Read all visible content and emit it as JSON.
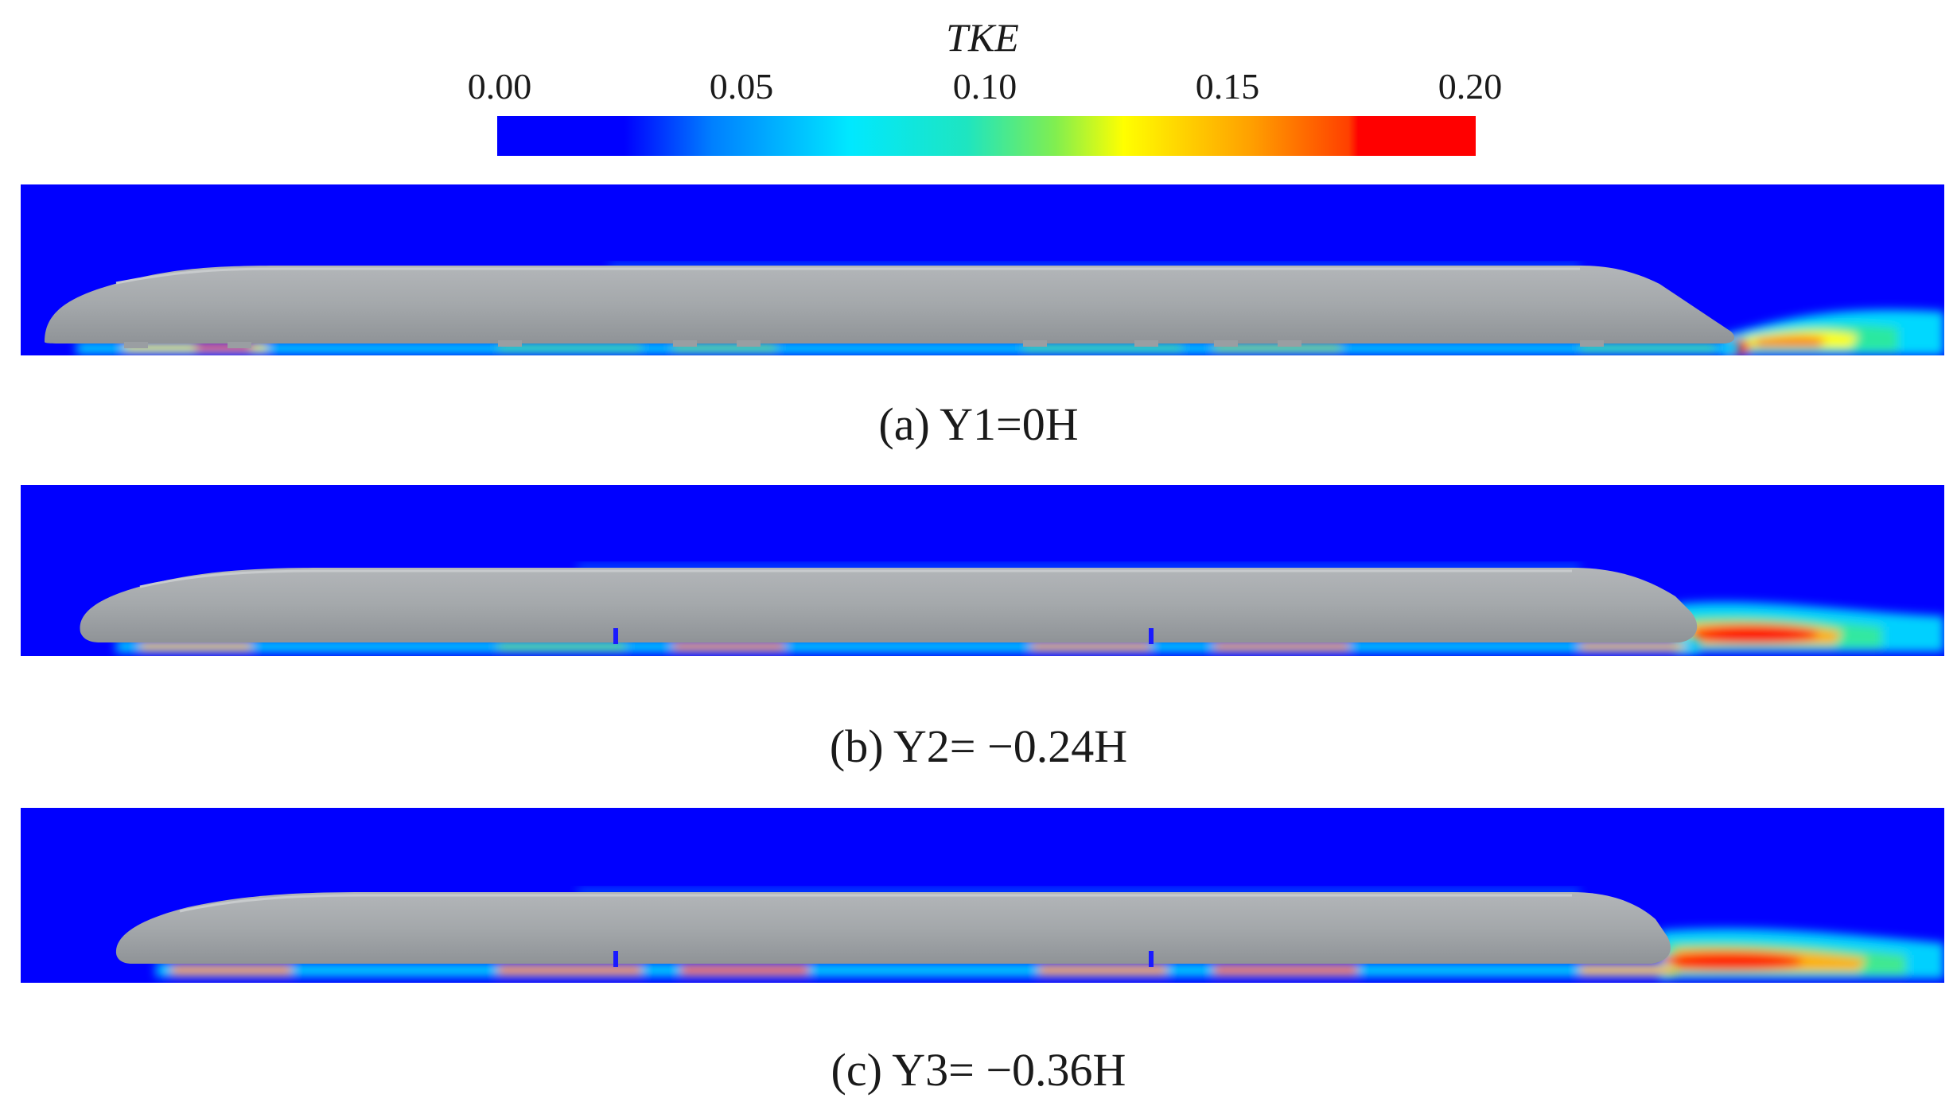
{
  "colorbar": {
    "title": "TKE",
    "ticks": [
      "0.00",
      "0.05",
      "0.10",
      "0.15",
      "0.20"
    ],
    "range": [
      0.0,
      0.2
    ],
    "colors": [
      "#0000ff",
      "#0080ff",
      "#00e8ff",
      "#1ee5c0",
      "#80ee50",
      "#ffff00",
      "#ffa000",
      "#ff4000",
      "#ff0000"
    ]
  },
  "panels": [
    {
      "caption": "(a) Y1=0H"
    },
    {
      "caption": "(b) Y2= −0.24H"
    },
    {
      "caption": "(c) Y3= −0.36H"
    }
  ],
  "colors": {
    "background_flow": "#0000ff",
    "train_body": "#a4a8ab"
  }
}
